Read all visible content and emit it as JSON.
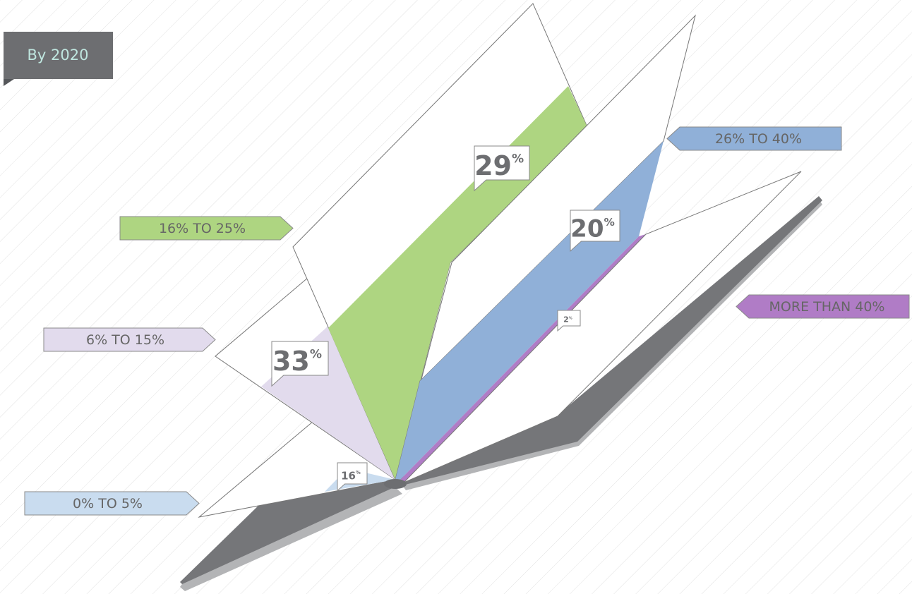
{
  "chart_data": {
    "type": "book",
    "badge": "By 2020",
    "unit": "%",
    "categories": [
      "0% TO 5%",
      "6% TO 15%",
      "16% TO 25%",
      "26% TO 40%",
      "MORE THAN 40%"
    ],
    "values": [
      16,
      33,
      29,
      20,
      2
    ],
    "colors": [
      "#c9dcef",
      "#e2dbed",
      "#aed581",
      "#90b0d8",
      "#b07cc6"
    ]
  }
}
